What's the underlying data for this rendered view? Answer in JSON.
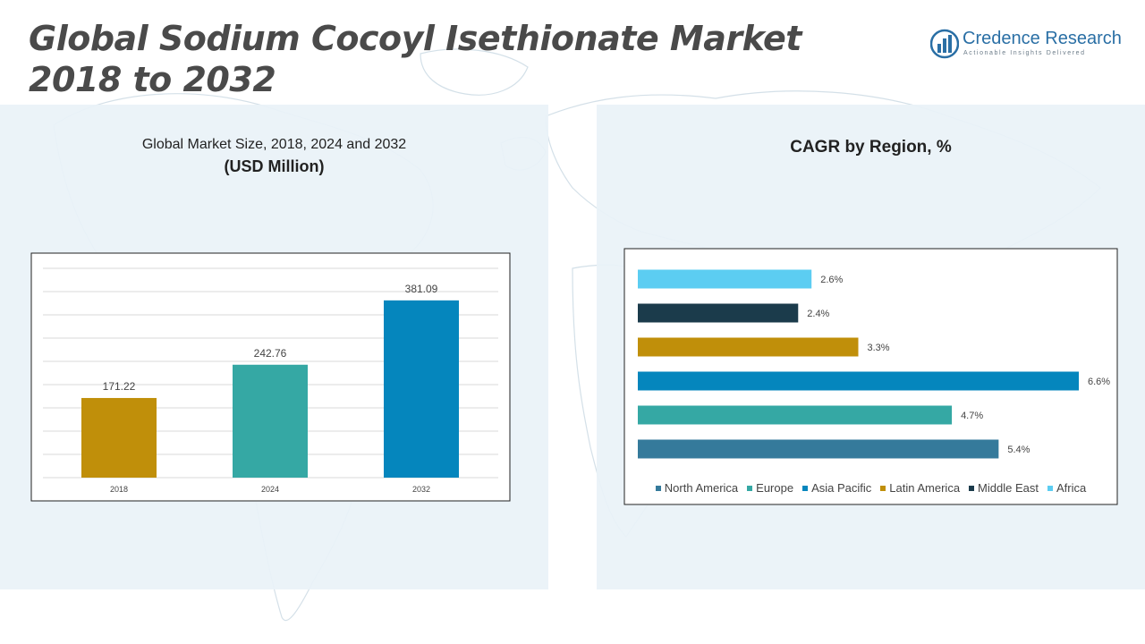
{
  "header": {
    "title_line1": "Global Sodium Cocoyl Isethionate Market",
    "title_line2": "2018 to 2032"
  },
  "logo": {
    "name": "Credence Research",
    "tagline": "Actionable Insights Delivered",
    "icon": "bar-chart-logo-icon"
  },
  "colors": {
    "north_america": "#357a9b",
    "europe": "#35a8a4",
    "asia_pacific": "#0586bd",
    "latin_america": "#c08f0a",
    "middle_east": "#1b3b4b",
    "africa": "#5ccdf2",
    "panel_bg": "#e9f2f7"
  },
  "left_chart": {
    "subtitle": "Global Market Size, 2018, 2024 and 2032",
    "unit": "(USD Million)"
  },
  "right_chart": {
    "title": "CAGR by Region, %"
  },
  "chart_data": [
    {
      "type": "bar",
      "title": "Global Market Size, 2018, 2024 and 2032",
      "subtitle": "(USD Million)",
      "categories": [
        "2018",
        "2024",
        "2032"
      ],
      "values": [
        171.22,
        242.76,
        381.09
      ],
      "value_labels": [
        "171.22",
        "242.76",
        "381.09"
      ],
      "bar_colors": [
        "#c08f0a",
        "#35a8a4",
        "#0586bd"
      ],
      "ylim": [
        0,
        450
      ],
      "grid": true
    },
    {
      "type": "bar",
      "orientation": "horizontal",
      "title": "CAGR by Region, %",
      "categories": [
        "North America",
        "Europe",
        "Asia Pacific",
        "Latin America",
        "Middle East",
        "Africa"
      ],
      "values": [
        5.4,
        4.7,
        6.6,
        3.3,
        2.4,
        2.6
      ],
      "value_labels": [
        "5.4%",
        "4.7%",
        "6.6%",
        "3.3%",
        "2.4%",
        "2.6%"
      ],
      "bar_colors": [
        "#357a9b",
        "#35a8a4",
        "#0586bd",
        "#c08f0a",
        "#1b3b4b",
        "#5ccdf2"
      ],
      "xlim": [
        0,
        6.6
      ],
      "legend_position": "bottom"
    }
  ]
}
